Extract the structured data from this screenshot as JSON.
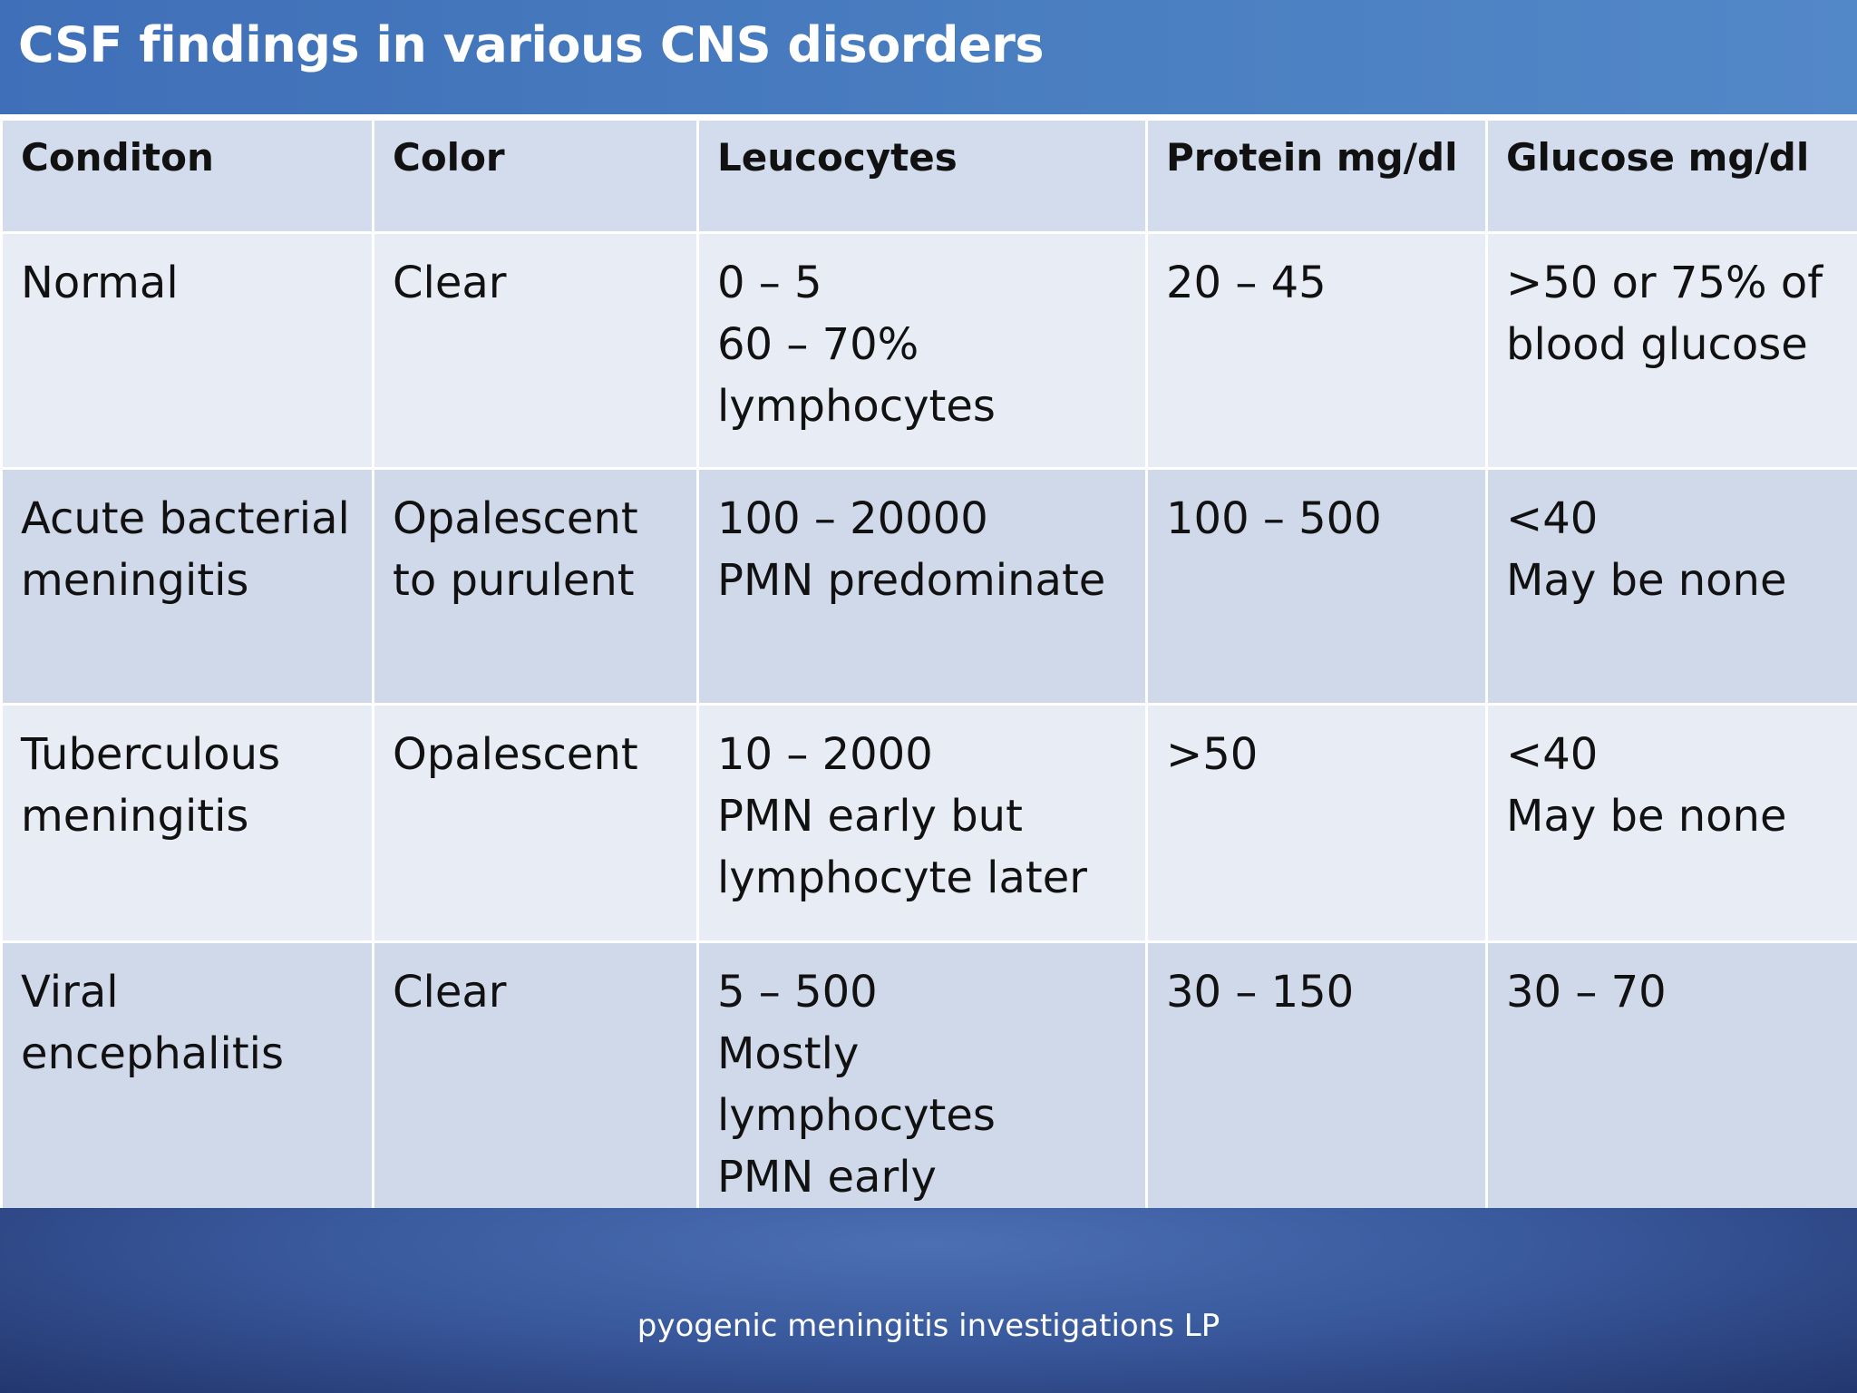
{
  "slide": {
    "title": "CSF findings in various CNS disorders",
    "footer": "pyogenic meningitis investigations LP"
  },
  "table": {
    "headers": [
      "Conditon",
      "Color",
      "Leucocytes",
      "Protein mg/dl",
      "Glucose mg/dl"
    ],
    "rows": [
      {
        "condition": [
          "Normal"
        ],
        "color": [
          "Clear"
        ],
        "leucocytes": [
          "0 – 5",
          "60 – 70%",
          "lymphocytes"
        ],
        "protein": [
          "20 – 45"
        ],
        "glucose": [
          ">50 or 75% of",
          "blood glucose"
        ]
      },
      {
        "condition": [
          "Acute bacterial",
          "meningitis"
        ],
        "color": [
          "Opalescent",
          "to purulent"
        ],
        "leucocytes": [
          "100 – 20000",
          "PMN predominate"
        ],
        "protein": [
          "100 – 500"
        ],
        "glucose": [
          "<40",
          "May be none"
        ]
      },
      {
        "condition": [
          "Tuberculous",
          "meningitis"
        ],
        "color": [
          "Opalescent"
        ],
        "leucocytes": [
          "10 – 2000",
          "PMN early but",
          "lymphocyte later"
        ],
        "protein": [
          ">50"
        ],
        "glucose": [
          "<40",
          "May be none"
        ]
      },
      {
        "condition": [
          "Viral",
          "encephalitis"
        ],
        "color": [
          "Clear"
        ],
        "leucocytes": [
          "5 – 500",
          "Mostly",
          "lymphocytes",
          "PMN early"
        ],
        "protein": [
          "30 – 150"
        ],
        "glucose": [
          "30 – 70"
        ]
      }
    ]
  }
}
